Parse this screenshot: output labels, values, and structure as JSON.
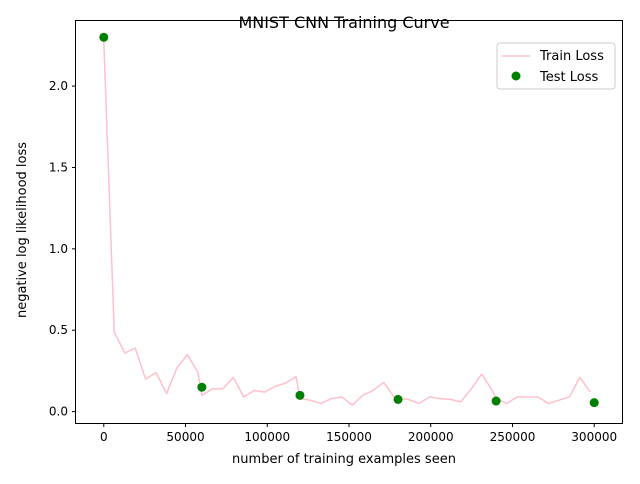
{
  "chart_data": {
    "type": "line",
    "title": "MNIST CNN Training Curve",
    "xlabel": "number of training examples seen",
    "ylabel": "negative log likelihood loss",
    "xlim": [
      -17000,
      317000
    ],
    "ylim": [
      -0.07,
      2.4
    ],
    "xticks": [
      0,
      50000,
      100000,
      150000,
      200000,
      250000,
      300000
    ],
    "yticks": [
      0.0,
      0.5,
      1.0,
      1.5,
      2.0,
      2.5
    ],
    "xtick_labels": [
      "0",
      "50000",
      "100000",
      "150000",
      "200000",
      "250000",
      "300000"
    ],
    "ytick_labels": [
      "0.0",
      "0.5",
      "1.0",
      "1.5",
      "2.0"
    ],
    "grid": false,
    "legend_position": "top-right",
    "series": [
      {
        "name": "Train Loss",
        "kind": "line",
        "color": "#ffc0cb",
        "x": [
          0,
          6400,
          12800,
          19200,
          25600,
          32000,
          38400,
          44800,
          51200,
          57600,
          60000,
          66400,
          72800,
          79200,
          85600,
          92000,
          98400,
          104800,
          111200,
          117600,
          120000,
          126400,
          132800,
          139200,
          145600,
          152000,
          158400,
          164800,
          171200,
          177600,
          180000,
          186400,
          192800,
          199200,
          205600,
          212000,
          218400,
          224800,
          231200,
          237600,
          240000,
          246400,
          252800,
          259200,
          265600,
          272000,
          278400,
          284800,
          291200,
          297600
        ],
        "y": [
          2.28,
          0.49,
          0.36,
          0.39,
          0.2,
          0.24,
          0.11,
          0.27,
          0.35,
          0.24,
          0.1,
          0.14,
          0.14,
          0.21,
          0.09,
          0.13,
          0.12,
          0.155,
          0.175,
          0.215,
          0.08,
          0.07,
          0.05,
          0.08,
          0.09,
          0.04,
          0.1,
          0.13,
          0.18,
          0.09,
          0.08,
          0.075,
          0.05,
          0.09,
          0.08,
          0.075,
          0.06,
          0.14,
          0.23,
          0.13,
          0.08,
          0.05,
          0.09,
          0.09,
          0.09,
          0.05,
          0.07,
          0.09,
          0.21,
          0.12
        ]
      },
      {
        "name": "Test Loss",
        "kind": "scatter",
        "color": "#008000",
        "x": [
          0,
          60000,
          120000,
          180000,
          240000,
          300000
        ],
        "y": [
          2.3,
          0.15,
          0.1,
          0.075,
          0.065,
          0.055
        ]
      }
    ]
  }
}
